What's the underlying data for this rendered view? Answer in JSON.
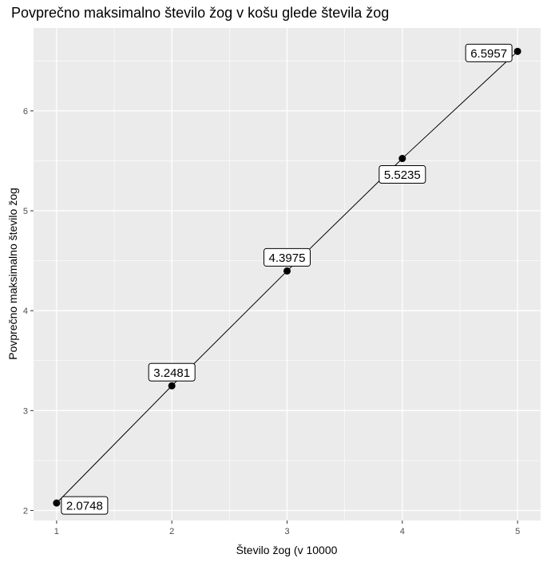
{
  "chart_data": {
    "type": "line",
    "title": "Povprečno maksimalno število žog v košu glede števila žog",
    "xlabel": "Število žog (v 10000",
    "ylabel": "Povprečno maksimalno število žog",
    "x": [
      1,
      2,
      3,
      4,
      5
    ],
    "y": [
      2.0748,
      3.2481,
      4.3975,
      5.5235,
      6.5957
    ],
    "data_labels": [
      "2.0748",
      "3.2481",
      "4.3975",
      "5.5235",
      "6.5957"
    ],
    "xticks": [
      1,
      2,
      3,
      4,
      5
    ],
    "yticks": [
      2,
      3,
      4,
      5,
      6
    ],
    "xlim": [
      0.8,
      5.2
    ],
    "ylim": [
      1.9,
      6.83
    ],
    "grid": true,
    "legend": "none",
    "colors": {
      "panel": "#ebebeb",
      "grid": "#ffffff",
      "line": "#000000",
      "point": "#000000"
    }
  }
}
